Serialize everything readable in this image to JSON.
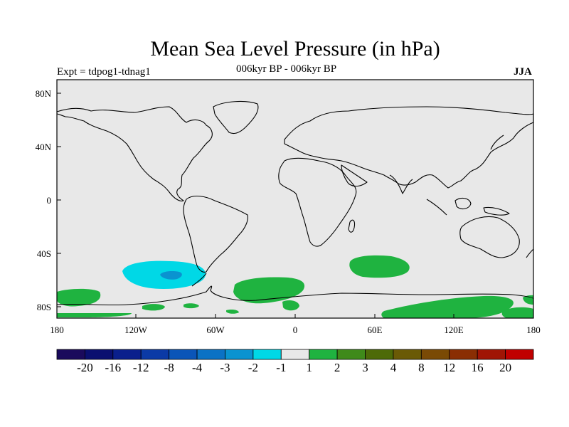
{
  "title": "Mean Sea Level Pressure (in hPa)",
  "experiment_label": "Expt = tdpog1-tdnag1",
  "period_label": "006kyr BP - 006kyr BP",
  "season": "JJA",
  "lat_ticks": [
    "80N",
    "40N",
    "0",
    "40S",
    "80S"
  ],
  "lon_ticks": [
    "180",
    "120W",
    "60W",
    "0",
    "60E",
    "120E",
    "180"
  ],
  "colorbar": {
    "colors": [
      "#1a0a5c",
      "#0a0f70",
      "#0a1f8c",
      "#0b3aa6",
      "#0a55b8",
      "#0b72c5",
      "#0a93d0",
      "#00d8e6",
      "#e8e8e8",
      "#1fb340",
      "#3f8a1a",
      "#4d6a08",
      "#6a5a06",
      "#7a4a05",
      "#8a2e03",
      "#a01505",
      "#c00000"
    ],
    "labels": [
      "-20",
      "-16",
      "-12",
      "-8",
      "-4",
      "-3",
      "-2",
      "-1",
      "1",
      "2",
      "3",
      "4",
      "8",
      "12",
      "16",
      "20"
    ]
  },
  "colors": {
    "neutral": "#e8e8e8",
    "neg_light": "#00d8e6",
    "neg_mid": "#0a93d0",
    "pos_light": "#1fb340"
  }
}
